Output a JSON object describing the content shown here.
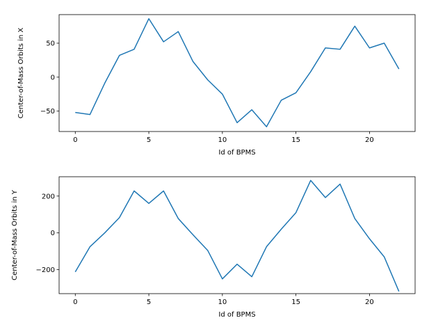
{
  "chart_data": [
    {
      "type": "line",
      "xlabel": "Id of BPMS",
      "ylabel": "Center-of-Mass Orbits in X",
      "xlim": [
        -1.1,
        23.1
      ],
      "ylim": [
        -80,
        92
      ],
      "xticks": [
        0,
        5,
        10,
        15,
        20
      ],
      "yticks": [
        -50,
        0,
        50
      ],
      "series_color": "#1f77b4",
      "x": [
        0,
        1,
        2,
        3,
        4,
        5,
        6,
        7,
        8,
        9,
        10,
        11,
        12,
        13,
        14,
        15,
        16,
        17,
        18,
        19,
        20,
        21,
        22
      ],
      "values": [
        -52,
        -55,
        -9,
        32,
        41,
        86,
        52,
        67,
        23,
        -4,
        -25,
        -67,
        -48,
        -73,
        -34,
        -23,
        8,
        43,
        41,
        75,
        43,
        50,
        12
      ]
    },
    {
      "type": "line",
      "xlabel": "Id of BPMS",
      "ylabel": "Center-of-Mass Orbits in Y",
      "xlim": [
        -1.1,
        23.1
      ],
      "ylim": [
        -330,
        305
      ],
      "xticks": [
        0,
        5,
        10,
        15,
        20
      ],
      "yticks": [
        -200,
        0,
        200
      ],
      "series_color": "#1f77b4",
      "x": [
        0,
        1,
        2,
        3,
        4,
        5,
        6,
        7,
        8,
        9,
        10,
        11,
        12,
        13,
        14,
        15,
        16,
        17,
        18,
        19,
        20,
        21,
        22
      ],
      "values": [
        -212,
        -75,
        0,
        83,
        228,
        160,
        228,
        78,
        -10,
        -95,
        -250,
        -170,
        -238,
        -75,
        20,
        110,
        285,
        192,
        265,
        78,
        -32,
        -130,
        -318
      ]
    }
  ]
}
